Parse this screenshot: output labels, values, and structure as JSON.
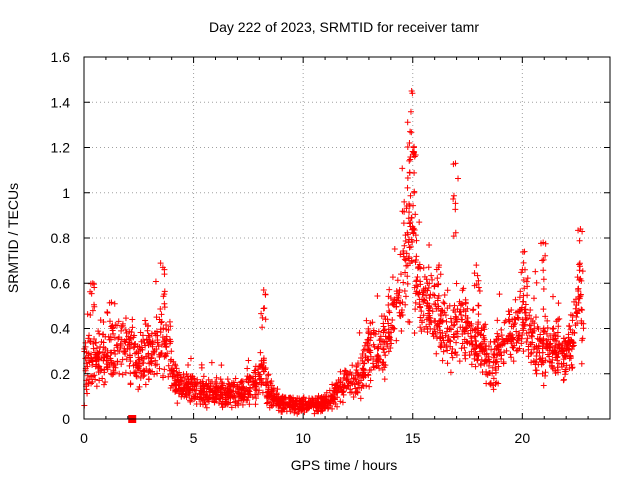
{
  "chart_data": {
    "type": "scatter",
    "title": "Day 222 of 2023, SRMTID for receiver tamr",
    "xlabel": "GPS time / hours",
    "ylabel": "SRMTID / TECUs",
    "xlim": [
      0,
      24
    ],
    "ylim": [
      0,
      1.6
    ],
    "xticks": [
      0,
      5,
      10,
      15,
      20
    ],
    "xtick_labels": [
      "0",
      "5",
      "10",
      "15",
      "20"
    ],
    "yticks": [
      0,
      0.2,
      0.4,
      0.6,
      0.8,
      1.0,
      1.2,
      1.4,
      1.6
    ],
    "ytick_labels": [
      "0",
      "0.2",
      "0.4",
      "0.6",
      "0.8",
      "1",
      "1.2",
      "1.4",
      "1.6"
    ],
    "grid": true,
    "marker": "plus",
    "color": "#ff0000",
    "gap_marker": {
      "x": 2.2,
      "y": 0,
      "shape": "square"
    },
    "series": [
      {
        "name": "SRMTID",
        "profile_x": [
          0,
          0.3,
          0.6,
          1.0,
          1.5,
          2.0,
          2.4,
          2.8,
          3.2,
          3.6,
          3.8,
          4.2,
          5.0,
          6.0,
          7.0,
          7.8,
          8.2,
          8.5,
          9.0,
          10.0,
          11.0,
          11.6,
          12.0,
          12.6,
          13.0,
          13.5,
          14.0,
          14.3,
          14.7,
          15.0,
          15.3,
          15.8,
          16.2,
          16.6,
          17.0,
          17.4,
          17.8,
          18.2,
          18.6,
          19.0,
          19.4,
          19.8,
          20.2,
          20.6,
          21.0,
          21.4,
          21.8,
          22.2,
          22.6,
          22.8
        ],
        "profile_y": [
          0.22,
          0.26,
          0.25,
          0.28,
          0.3,
          0.34,
          0.24,
          0.28,
          0.3,
          0.38,
          0.28,
          0.17,
          0.13,
          0.11,
          0.11,
          0.15,
          0.22,
          0.1,
          0.07,
          0.06,
          0.07,
          0.12,
          0.18,
          0.16,
          0.3,
          0.28,
          0.4,
          0.52,
          0.72,
          0.78,
          0.55,
          0.5,
          0.42,
          0.34,
          0.42,
          0.4,
          0.33,
          0.34,
          0.22,
          0.3,
          0.38,
          0.4,
          0.4,
          0.35,
          0.3,
          0.32,
          0.28,
          0.3,
          0.52,
          0.36
        ],
        "profile_spread": [
          0.1,
          0.12,
          0.12,
          0.12,
          0.1,
          0.12,
          0.1,
          0.14,
          0.12,
          0.14,
          0.1,
          0.06,
          0.05,
          0.05,
          0.05,
          0.05,
          0.1,
          0.04,
          0.03,
          0.03,
          0.03,
          0.05,
          0.07,
          0.07,
          0.12,
          0.1,
          0.12,
          0.16,
          0.22,
          0.24,
          0.16,
          0.14,
          0.12,
          0.12,
          0.14,
          0.12,
          0.1,
          0.12,
          0.1,
          0.12,
          0.12,
          0.12,
          0.12,
          0.12,
          0.1,
          0.1,
          0.1,
          0.1,
          0.16,
          0.1
        ],
        "sample_count": 2200,
        "peaks": [
          {
            "x": 14.95,
            "y": 1.45
          },
          {
            "x": 15.05,
            "y": 1.2
          },
          {
            "x": 14.85,
            "y": 1.22
          },
          {
            "x": 16.95,
            "y": 1.13
          },
          {
            "x": 22.65,
            "y": 0.84
          },
          {
            "x": 20.95,
            "y": 0.78
          },
          {
            "x": 3.6,
            "y": 0.67
          },
          {
            "x": 8.2,
            "y": 0.57
          },
          {
            "x": 0.4,
            "y": 0.6
          },
          {
            "x": 17.9,
            "y": 0.68
          },
          {
            "x": 20.1,
            "y": 0.74
          },
          {
            "x": 16.2,
            "y": 0.68
          }
        ]
      }
    ]
  }
}
